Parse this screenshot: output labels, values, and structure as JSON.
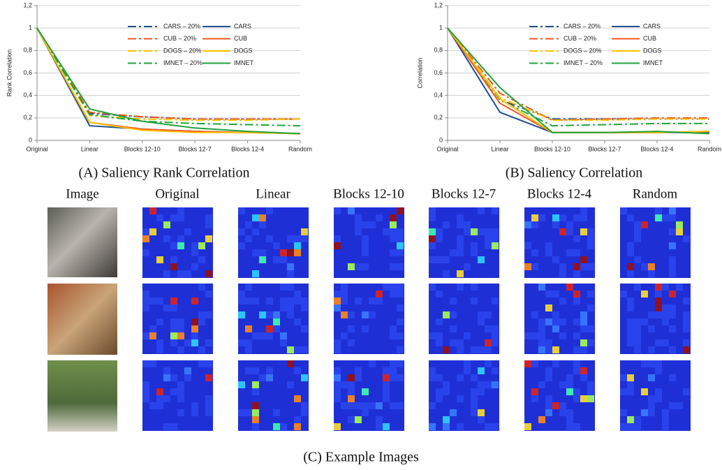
{
  "chart_data": [
    {
      "type": "line",
      "caption": "(A) Saliency Rank Correlation",
      "y_label": "Rank Correlation",
      "categories": [
        "Original",
        "Linear",
        "Blocks 12-10",
        "Blocks 12-7",
        "Blocks 12-4",
        "Random"
      ],
      "ylim": [
        0,
        1.2
      ],
      "yticks": [
        0,
        {
          "value": 0.2,
          "label": "0,2"
        },
        {
          "value": 0.4,
          "label": "0,4"
        },
        {
          "value": 0.6,
          "label": "0,6"
        },
        {
          "value": 0.8,
          "label": "0,8"
        },
        1,
        {
          "value": 1.2,
          "label": "1,2"
        }
      ],
      "grid": true,
      "series": [
        {
          "name": "CARS – 20%",
          "color": "#1f4e8c",
          "style": "dash-dot",
          "values": [
            1,
            0.24,
            0.21,
            0.19,
            0.19,
            0.19
          ]
        },
        {
          "name": "CUB – 20%",
          "color": "#f0561d",
          "style": "dash-dot",
          "values": [
            1,
            0.25,
            0.21,
            0.19,
            0.19,
            0.19
          ]
        },
        {
          "name": "DOGS – 20%",
          "color": "#ffc000",
          "style": "dash-dot",
          "values": [
            1,
            0.22,
            0.19,
            0.18,
            0.18,
            0.19
          ]
        },
        {
          "name": "IMNET – 20%",
          "color": "#21a33b",
          "style": "dash-dot",
          "values": [
            1,
            0.23,
            0.17,
            0.15,
            0.14,
            0.13
          ]
        },
        {
          "name": "CARS",
          "color": "#1f4e8c",
          "style": "solid",
          "values": [
            1,
            0.13,
            0.1,
            0.08,
            0.07,
            0.06
          ]
        },
        {
          "name": "CUB",
          "color": "#f0561d",
          "style": "solid",
          "values": [
            1,
            0.16,
            0.1,
            0.08,
            0.07,
            0.06
          ]
        },
        {
          "name": "DOGS",
          "color": "#ffc000",
          "style": "solid",
          "values": [
            1,
            0.16,
            0.09,
            0.07,
            0.07,
            0.06
          ]
        },
        {
          "name": "IMNET",
          "color": "#21a33b",
          "style": "solid",
          "values": [
            1,
            0.28,
            0.17,
            0.11,
            0.08,
            0.06
          ]
        }
      ]
    },
    {
      "type": "line",
      "caption": "(B) Saliency Correlation",
      "y_label": "Correlation",
      "categories": [
        "Original",
        "Linear",
        "Blocks 12-10",
        "Blocks 12-7",
        "Blocks 12-4",
        "Random"
      ],
      "ylim": [
        0,
        1.2
      ],
      "yticks": [
        0,
        {
          "value": 0.2,
          "label": "0,2"
        },
        {
          "value": 0.4,
          "label": "0,4"
        },
        {
          "value": 0.6,
          "label": "0,6"
        },
        {
          "value": 0.8,
          "label": "0,8"
        },
        1,
        {
          "value": 1.2,
          "label": "1,2"
        }
      ],
      "grid": true,
      "series": [
        {
          "name": "CARS – 20%",
          "color": "#1f4e8c",
          "style": "dash-dot",
          "values": [
            1,
            0.36,
            0.19,
            0.19,
            0.19,
            0.19
          ]
        },
        {
          "name": "CUB – 20%",
          "color": "#f0561d",
          "style": "dash-dot",
          "values": [
            1,
            0.42,
            0.18,
            0.19,
            0.2,
            0.2
          ]
        },
        {
          "name": "DOGS – 20%",
          "color": "#ffc000",
          "style": "dash-dot",
          "values": [
            1,
            0.38,
            0.18,
            0.18,
            0.19,
            0.19
          ]
        },
        {
          "name": "IMNET – 20%",
          "color": "#21a33b",
          "style": "dash-dot",
          "values": [
            1,
            0.36,
            0.13,
            0.14,
            0.15,
            0.15
          ]
        },
        {
          "name": "CARS",
          "color": "#1f4e8c",
          "style": "solid",
          "values": [
            1,
            0.25,
            0.07,
            0.07,
            0.07,
            0.07
          ]
        },
        {
          "name": "CUB",
          "color": "#f0561d",
          "style": "solid",
          "values": [
            1,
            0.33,
            0.07,
            0.07,
            0.07,
            0.08
          ]
        },
        {
          "name": "DOGS",
          "color": "#ffc000",
          "style": "solid",
          "values": [
            1,
            0.37,
            0.07,
            0.07,
            0.07,
            0.08
          ]
        },
        {
          "name": "IMNET",
          "color": "#21a33b",
          "style": "solid",
          "values": [
            1,
            0.47,
            0.07,
            0.07,
            0.08,
            0.06
          ]
        }
      ]
    }
  ],
  "image_grid": {
    "columns": [
      "Image",
      "Original",
      "Linear",
      "Blocks 12-10",
      "Blocks 12-7",
      "Blocks 12-4",
      "Random"
    ],
    "caption": "(C) Example Images"
  }
}
